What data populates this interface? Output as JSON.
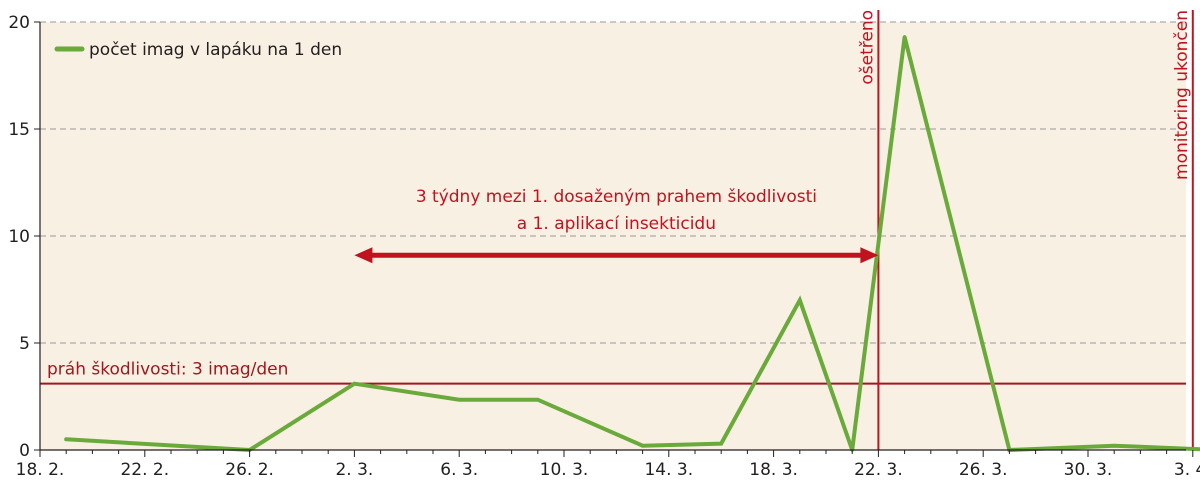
{
  "chart_data": {
    "type": "line",
    "x_tick_labels": [
      "18. 2.",
      "22. 2.",
      "26. 2.",
      "2. 3.",
      "6. 3.",
      "10. 3.",
      "14. 3.",
      "18. 3.",
      "22. 3.",
      "26. 3.",
      "30. 3.",
      "3. 4."
    ],
    "x_range_days": [
      0,
      44
    ],
    "y_ticks": [
      0,
      5,
      10,
      15,
      20
    ],
    "ylim": [
      0,
      20
    ],
    "series": [
      {
        "name": "počet imag v lapáku na 1 den",
        "color": "#6aaa3a",
        "points": [
          {
            "x_day": 1,
            "y": 0.5
          },
          {
            "x_day": 8,
            "y": 0.0
          },
          {
            "x_day": 12,
            "y": 3.1
          },
          {
            "x_day": 16,
            "y": 2.35
          },
          {
            "x_day": 19,
            "y": 2.35
          },
          {
            "x_day": 23,
            "y": 0.2
          },
          {
            "x_day": 26,
            "y": 0.3
          },
          {
            "x_day": 29,
            "y": 7.0
          },
          {
            "x_day": 31,
            "y": 0.0
          },
          {
            "x_day": 33,
            "y": 19.3
          },
          {
            "x_day": 37,
            "y": 0.0
          },
          {
            "x_day": 41,
            "y": 0.2
          },
          {
            "x_day": 45,
            "y": 0.0
          }
        ]
      }
    ],
    "threshold": {
      "y": 3.1,
      "label": "práh škodlivosti: 3 imag/den",
      "color": "#a0171f"
    },
    "vertical_markers": [
      {
        "x_day": 32,
        "label": "ošetřeno",
        "color": "#c1121f"
      },
      {
        "x_day": 44,
        "label": "monitoring ukončen",
        "color": "#c1121f"
      }
    ],
    "annotation": {
      "lines": [
        "3 týdny mezi 1. dosaženým prahem škodlivosti",
        "a 1. aplikací insekticidu"
      ],
      "arrow_from_day": 12,
      "arrow_to_day": 32,
      "arrow_y": 9.1,
      "color": "#c1121f"
    },
    "legend_position": "top-left",
    "grid": "horizontal dashed",
    "background_color": "#f8f0e2"
  }
}
